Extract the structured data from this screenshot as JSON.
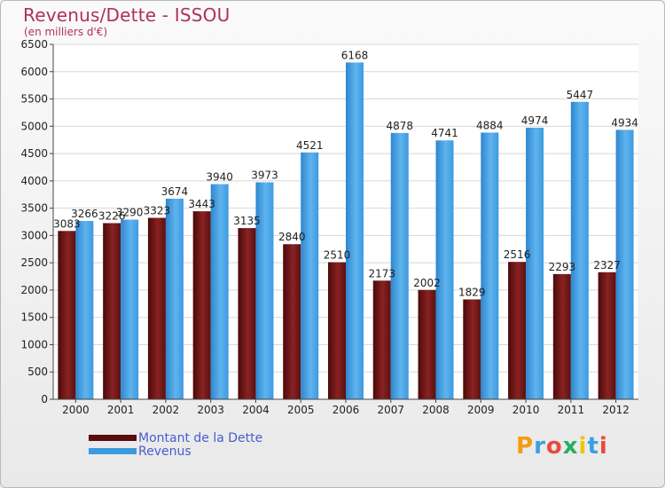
{
  "header": {
    "title": "Revenus/Dette - ISSOU",
    "subtitle": "(en milliers d'€)"
  },
  "logo": {
    "letters": [
      "P",
      "r",
      "o",
      "x",
      "i",
      "t",
      "i"
    ],
    "colors": [
      "#f39c12",
      "#3aa0e0",
      "#e74c3c",
      "#27ae60",
      "#f1c40f",
      "#3aa0e0",
      "#e74c3c"
    ]
  },
  "chart_data": {
    "type": "bar",
    "categories": [
      "2000",
      "2001",
      "2002",
      "2003",
      "2004",
      "2005",
      "2006",
      "2007",
      "2008",
      "2009",
      "2010",
      "2011",
      "2012"
    ],
    "series": [
      {
        "name": "Montant de la Dette",
        "color": "#7a1a1a",
        "values": [
          3083,
          3226,
          3323,
          3443,
          3135,
          2840,
          2510,
          2173,
          2002,
          1829,
          2516,
          2293,
          2327
        ]
      },
      {
        "name": "Revenus",
        "color": "#3c9ae0",
        "values": [
          3266,
          3290,
          3674,
          3940,
          3973,
          4521,
          6168,
          4878,
          4741,
          4884,
          4974,
          5447,
          4934
        ]
      }
    ],
    "yticks": [
      0,
      500,
      1000,
      1500,
      2000,
      2500,
      3000,
      3500,
      4000,
      4500,
      5000,
      5500,
      6000,
      6500
    ],
    "ylim": [
      0,
      6500
    ],
    "grid": true,
    "legend": "bottom-left"
  }
}
